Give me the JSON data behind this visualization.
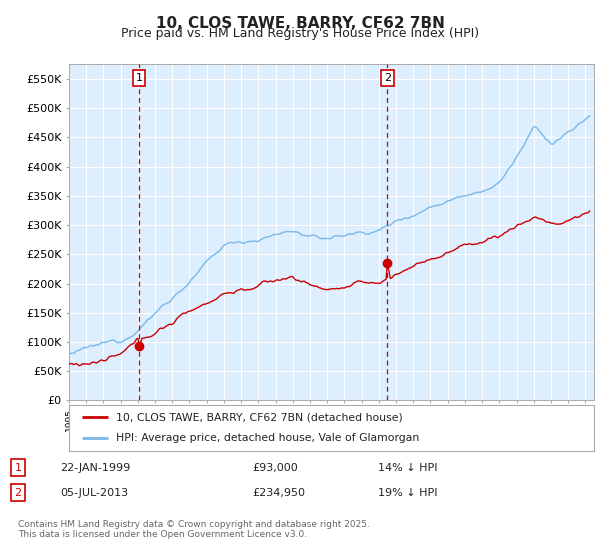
{
  "title": "10, CLOS TAWE, BARRY, CF62 7BN",
  "subtitle": "Price paid vs. HM Land Registry's House Price Index (HPI)",
  "ylim": [
    0,
    575000
  ],
  "yticks": [
    0,
    50000,
    100000,
    150000,
    200000,
    250000,
    300000,
    350000,
    400000,
    450000,
    500000,
    550000
  ],
  "x_start_year": 1995,
  "x_end_year": 2025,
  "hpi_color": "#7ab8e8",
  "price_color": "#cc0000",
  "sale1_x": 1999.06,
  "sale1_price": 93000,
  "sale2_x": 2013.5,
  "sale2_price": 234950,
  "legend_line1": "10, CLOS TAWE, BARRY, CF62 7BN (detached house)",
  "legend_line2": "HPI: Average price, detached house, Vale of Glamorgan",
  "sale1_date": "22-JAN-1999",
  "sale1_amount": "£93,000",
  "sale1_pct": "14% ↓ HPI",
  "sale2_date": "05-JUL-2013",
  "sale2_amount": "£234,950",
  "sale2_pct": "19% ↓ HPI",
  "footer": "Contains HM Land Registry data © Crown copyright and database right 2025.\nThis data is licensed under the Open Government Licence v3.0.",
  "chart_bg": "#ddeeff",
  "bg_color": "#ffffff",
  "grid_color": "#ffffff",
  "title_fontsize": 11,
  "subtitle_fontsize": 9,
  "axis_fontsize": 8
}
